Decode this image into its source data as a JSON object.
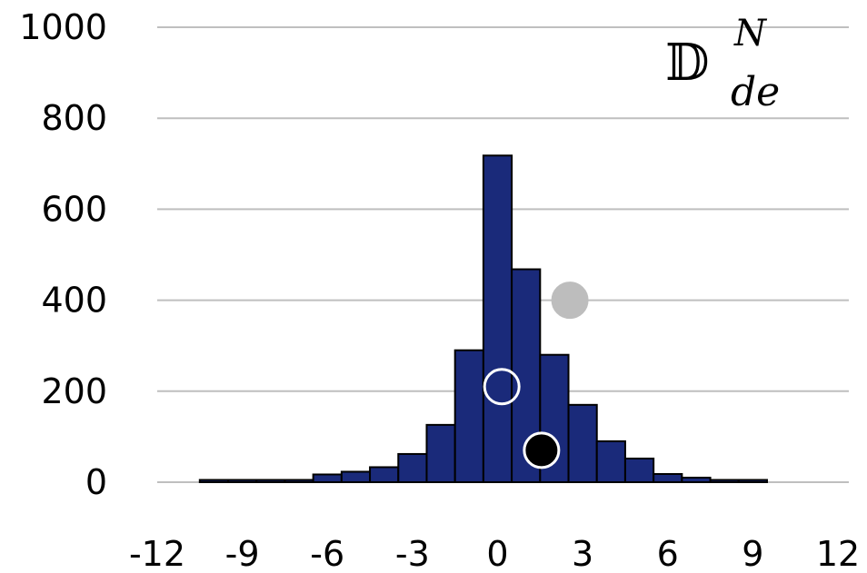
{
  "chart_data": {
    "type": "bar",
    "title": {
      "symbol": "𝔻",
      "superscript": "N",
      "subscript": "de"
    },
    "xlim": [
      -12,
      12
    ],
    "ylim": [
      0,
      1000
    ],
    "x_ticks": [
      "-12",
      "-9",
      "-6",
      "-3",
      "0",
      "3",
      "6",
      "9",
      "12"
    ],
    "y_ticks": [
      "0",
      "200",
      "400",
      "600",
      "800",
      "1000"
    ],
    "grid": "horizontal",
    "bin_width": 1,
    "bins": [
      {
        "x": -10,
        "value": 5
      },
      {
        "x": -9,
        "value": 5
      },
      {
        "x": -8,
        "value": 5
      },
      {
        "x": -7,
        "value": 5
      },
      {
        "x": -6,
        "value": 17
      },
      {
        "x": -5,
        "value": 23
      },
      {
        "x": -4,
        "value": 33
      },
      {
        "x": -3,
        "value": 62
      },
      {
        "x": -2,
        "value": 126
      },
      {
        "x": -1,
        "value": 290
      },
      {
        "x": 0,
        "value": 718
      },
      {
        "x": 1,
        "value": 468
      },
      {
        "x": 2,
        "value": 280
      },
      {
        "x": 3,
        "value": 170
      },
      {
        "x": 4,
        "value": 90
      },
      {
        "x": 5,
        "value": 52
      },
      {
        "x": 6,
        "value": 18
      },
      {
        "x": 7,
        "value": 10
      },
      {
        "x": 8,
        "value": 5
      },
      {
        "x": 9,
        "value": 5
      }
    ],
    "bar_color": "#1a2a7a",
    "markers": [
      {
        "name": "gray-dot",
        "x": 2.55,
        "y": 400,
        "fill": "#bdbdbd",
        "stroke": "#bdbdbd"
      },
      {
        "name": "hollow-dot",
        "x": 0.15,
        "y": 210,
        "fill": "none",
        "stroke": "#ffffff"
      },
      {
        "name": "black-dot",
        "x": 1.55,
        "y": 70,
        "fill": "#000000",
        "stroke": "#ffffff"
      }
    ]
  }
}
